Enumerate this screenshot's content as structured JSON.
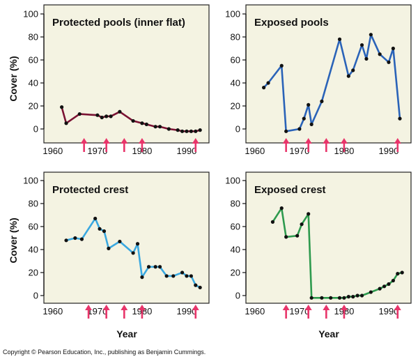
{
  "colors": {
    "panel_bg": "#f4f3e2",
    "arrow": "#e8356a",
    "protected_pools": "#7a1233",
    "exposed_pools": "#2a63b8",
    "protected_crest": "#3aa8e0",
    "exposed_crest": "#2e9a4e",
    "marker": "#111111"
  },
  "y_axis_label": "Cover (%)",
  "x_axis_label": "Year",
  "copyright": "Copyright © Pearson Education, Inc., publishing as Benjamin Cummings.",
  "chart_data": [
    {
      "type": "line",
      "title": "Protected pools (inner flat)",
      "xlim": [
        1958,
        1995
      ],
      "ylim": [
        0,
        100
      ],
      "xticks": [
        1960,
        1970,
        1980,
        1990
      ],
      "yticks": [
        0,
        20,
        40,
        60,
        80,
        100
      ],
      "color_key": "protected_pools",
      "x": [
        1962,
        1963,
        1966,
        1970,
        1971,
        1972,
        1973,
        1975,
        1978,
        1980,
        1981,
        1983,
        1984,
        1986,
        1988,
        1989,
        1990,
        1991,
        1992,
        1993
      ],
      "y": [
        19,
        5,
        13,
        12,
        10,
        11,
        11,
        15,
        7,
        5,
        4,
        2,
        2,
        0,
        -1,
        -2,
        -2,
        -2,
        -2,
        -1
      ],
      "arrows": [
        1967,
        1972,
        1976,
        1980,
        1992
      ]
    },
    {
      "type": "line",
      "title": "Exposed pools",
      "xlim": [
        1958,
        1995
      ],
      "ylim": [
        0,
        100
      ],
      "xticks": [
        1960,
        1970,
        1980,
        1990
      ],
      "yticks": [
        0,
        20,
        40,
        60,
        80,
        100
      ],
      "color_key": "exposed_pools",
      "x": [
        1962,
        1963,
        1966,
        1967,
        1970,
        1971,
        1972,
        1972.7,
        1975,
        1979,
        1981,
        1982,
        1984,
        1985,
        1986,
        1988,
        1990,
        1991,
        1992.5
      ],
      "y": [
        36,
        40,
        55,
        -2,
        0,
        9,
        21,
        4,
        24,
        78,
        46,
        51,
        73,
        61,
        82,
        65,
        58,
        70,
        9
      ],
      "arrows": [
        1967,
        1972,
        1976,
        1980,
        1992
      ]
    },
    {
      "type": "line",
      "title": "Protected crest",
      "xlim": [
        1958,
        1995
      ],
      "ylim": [
        0,
        100
      ],
      "xticks": [
        1960,
        1970,
        1980,
        1990
      ],
      "yticks": [
        0,
        20,
        40,
        60,
        80,
        100
      ],
      "color_key": "protected_crest",
      "x": [
        1963,
        1965,
        1966.5,
        1969.5,
        1970.5,
        1971.5,
        1972.5,
        1975,
        1978,
        1979,
        1980,
        1981.5,
        1983,
        1984,
        1985.5,
        1987,
        1989,
        1990,
        1991,
        1992,
        1993
      ],
      "y": [
        48,
        50,
        49,
        67,
        58,
        56,
        41,
        47,
        37,
        45,
        16,
        25,
        25,
        25,
        17,
        17,
        20,
        17,
        17,
        9,
        7
      ],
      "arrows": [
        1968,
        1972,
        1976,
        1980,
        1992
      ]
    },
    {
      "type": "line",
      "title": "Exposed crest",
      "xlim": [
        1958,
        1995
      ],
      "ylim": [
        0,
        100
      ],
      "xticks": [
        1960,
        1970,
        1980,
        1990
      ],
      "yticks": [
        0,
        20,
        40,
        60,
        80,
        100
      ],
      "color_key": "exposed_crest",
      "x": [
        1964,
        1966,
        1967,
        1969.5,
        1970.5,
        1972,
        1972.7,
        1975,
        1977,
        1979,
        1980,
        1981,
        1982,
        1983,
        1984,
        1986,
        1988,
        1989,
        1990,
        1991,
        1992,
        1993
      ],
      "y": [
        64,
        76,
        51,
        52,
        62,
        71,
        -2,
        -2,
        -2,
        -2,
        -2,
        -1,
        -1,
        0,
        0,
        3,
        6,
        8,
        10,
        13,
        19,
        20
      ],
      "arrows": [
        1967,
        1972,
        1976,
        1980,
        1992
      ]
    }
  ]
}
